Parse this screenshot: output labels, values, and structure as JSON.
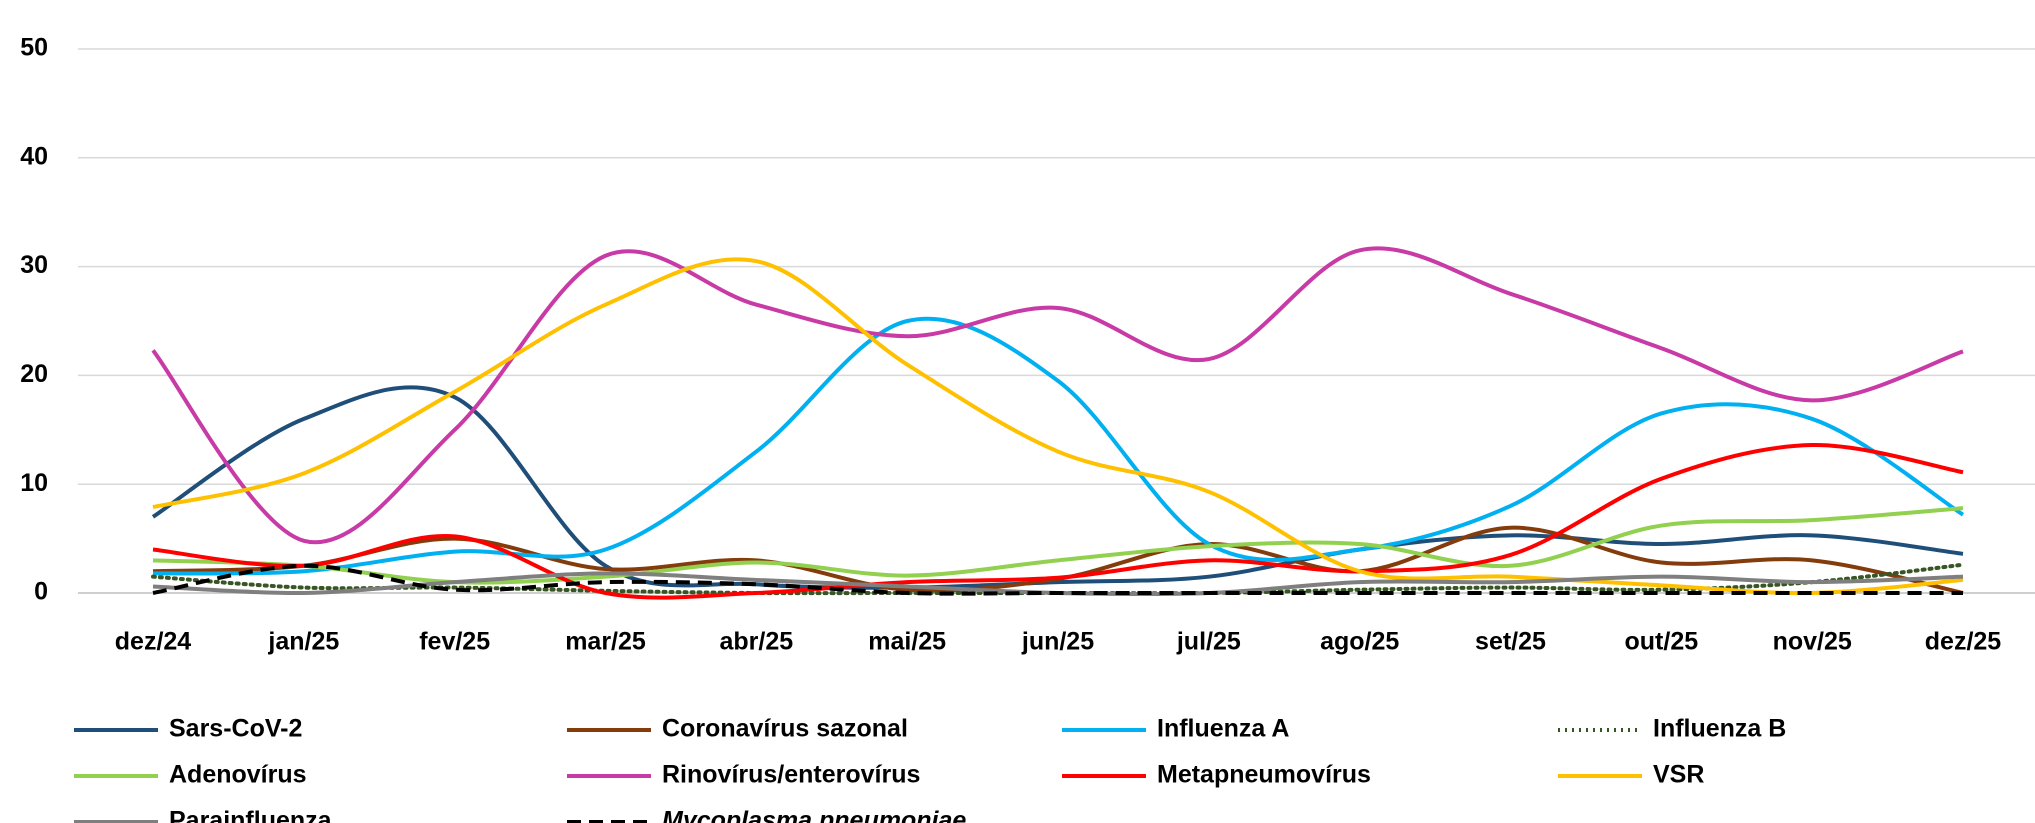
{
  "chart_data": {
    "type": "line",
    "categories": [
      "dez/24",
      "jan/25",
      "fev/25",
      "mar/25",
      "abr/25",
      "mai/25",
      "jun/25",
      "jul/25",
      "ago/25",
      "set/25",
      "out/25",
      "nov/25",
      "dez/25"
    ],
    "ylim": [
      0,
      50
    ],
    "yticks": [
      0,
      10,
      20,
      30,
      40,
      50
    ],
    "grid": true,
    "smooth": true,
    "series": [
      {
        "name": "Sars-CoV-2",
        "color": "#1f4e79",
        "values": [
          7,
          16,
          18,
          2.5,
          0.8,
          0.5,
          1,
          1.5,
          4,
          5.3,
          4.5,
          5.3,
          3.6
        ]
      },
      {
        "name": "Coronavírus sazonal",
        "color": "#843c0c",
        "values": [
          2,
          2.5,
          5,
          2.2,
          3,
          0.3,
          1.3,
          4.5,
          2,
          6,
          2.8,
          3,
          0
        ]
      },
      {
        "name": "Influenza A",
        "color": "#00b0f0",
        "values": [
          1.8,
          2,
          3.8,
          4,
          13,
          25,
          19.5,
          4.5,
          4,
          8,
          16.5,
          16,
          7.2
        ]
      },
      {
        "name": "Influenza B",
        "color": "#375623",
        "dash": "dotted",
        "values": [
          1.5,
          0.5,
          0.5,
          0.2,
          0,
          0,
          0,
          0,
          0.3,
          0.5,
          0.3,
          1,
          2.6
        ]
      },
      {
        "name": "Adenovírus",
        "color": "#92d050",
        "values": [
          3,
          2.5,
          1,
          1.5,
          2.8,
          1.6,
          3,
          4.3,
          4.5,
          2.5,
          6.2,
          6.7,
          7.8
        ]
      },
      {
        "name": "Rinovírus/enterovírus",
        "color": "#c83aa5",
        "values": [
          22.3,
          4.8,
          15,
          31,
          26.5,
          23.6,
          26.2,
          21.5,
          31.5,
          27.5,
          22.5,
          17.7,
          22.2
        ]
      },
      {
        "name": "Metapneumovírus",
        "color": "#ff0000",
        "values": [
          4,
          2.5,
          5.2,
          0,
          0,
          1,
          1.4,
          3,
          2,
          3.5,
          10.5,
          13.6,
          11.1
        ]
      },
      {
        "name": "VSR",
        "color": "#ffc000",
        "values": [
          7.9,
          11,
          18.5,
          26.5,
          30.5,
          21,
          13,
          9.3,
          2,
          1.5,
          0.7,
          0,
          1.2
        ]
      },
      {
        "name": "Parainfluenza",
        "color": "#7f7f7f",
        "values": [
          0.6,
          0,
          1,
          1.8,
          1.2,
          0.6,
          0,
          0,
          1,
          1,
          1.5,
          1,
          1.5
        ]
      },
      {
        "name": "Mycoplasma pneumoniae",
        "color": "#000000",
        "dash": "dashed",
        "italic": true,
        "values": [
          0,
          2.5,
          0.3,
          1,
          0.8,
          0,
          0,
          0,
          0,
          0,
          0,
          0,
          0
        ]
      }
    ]
  }
}
